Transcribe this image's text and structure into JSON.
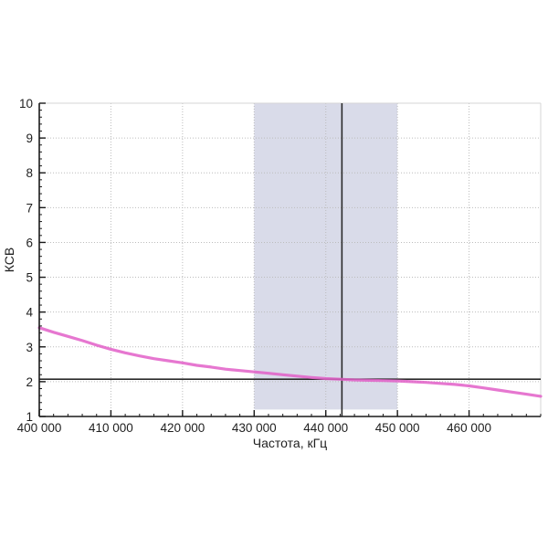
{
  "page": {
    "background": "#ffffff"
  },
  "chart_data": {
    "type": "line",
    "title": "",
    "xlabel": "Частота, кГц",
    "ylabel": "КСВ",
    "xlim": [
      400000,
      470000
    ],
    "ylim": [
      1,
      10
    ],
    "grid": "dotted",
    "legend": "none",
    "x_major_ticks": [
      400000,
      410000,
      420000,
      430000,
      440000,
      450000,
      460000
    ],
    "x_major_labels": [
      "400 000",
      "410 000",
      "420 000",
      "430 000",
      "440 000",
      "450 000",
      "460 000"
    ],
    "x_minor_step": 2000,
    "y_major_ticks": [
      1,
      2,
      3,
      4,
      5,
      6,
      7,
      8,
      9,
      10
    ],
    "y_major_labels": [
      "1",
      "2",
      "3",
      "4",
      "5",
      "6",
      "7",
      "8",
      "9",
      "10"
    ],
    "y_minor_step": 0.2,
    "highlight_band": {
      "x_from": 430000,
      "x_to": 450000,
      "y_from": 1.2,
      "y_to": 10,
      "color": "#d9dbe9"
    },
    "marker_vline_x": 442250,
    "marker_hline_y": 2.07,
    "series": [
      {
        "name": "КСВ",
        "color": "#e25fc8",
        "x": [
          400000,
          402000,
          404000,
          406000,
          408000,
          410000,
          412000,
          414000,
          416000,
          418000,
          420000,
          422000,
          424000,
          426000,
          428000,
          430000,
          432000,
          434000,
          436000,
          438000,
          440000,
          442000,
          444000,
          446000,
          448000,
          450000,
          452000,
          454000,
          456000,
          458000,
          460000,
          462000,
          464000,
          466000,
          468000,
          470000
        ],
        "y": [
          3.55,
          3.42,
          3.3,
          3.18,
          3.05,
          2.93,
          2.83,
          2.74,
          2.66,
          2.6,
          2.54,
          2.47,
          2.42,
          2.36,
          2.32,
          2.28,
          2.24,
          2.2,
          2.16,
          2.12,
          2.09,
          2.07,
          2.05,
          2.04,
          2.03,
          2.02,
          2.0,
          1.98,
          1.95,
          1.92,
          1.88,
          1.82,
          1.76,
          1.7,
          1.64,
          1.58
        ]
      }
    ]
  },
  "style": {
    "axis_color": "#1a1a1a",
    "frame_light_color": "#d6d6d6",
    "grid_color": "#bcbcbc",
    "marker_line_color": "#2a2a2a",
    "tick_label_color": "#1f1f1f",
    "axis_title_color": "#1f1f1f"
  }
}
